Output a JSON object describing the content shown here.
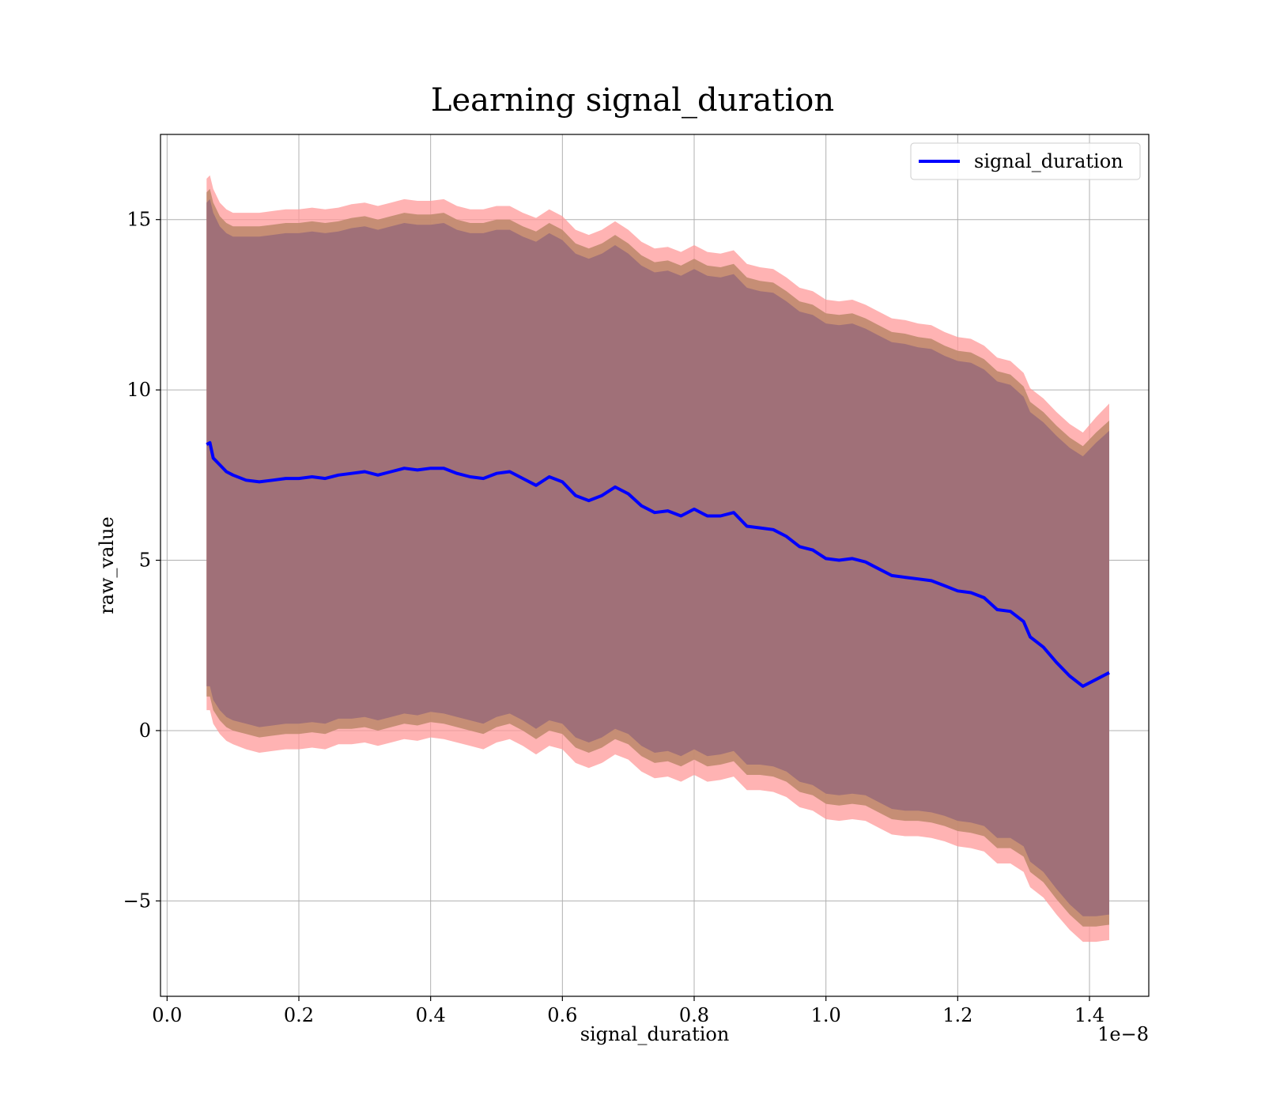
{
  "chart_data": {
    "type": "line",
    "title": "Learning signal_duration",
    "xlabel": "signal_duration",
    "ylabel": "raw_value",
    "x_offset_text": "1e−8",
    "xlim": [
      -0.01,
      1.49
    ],
    "ylim": [
      -7.8,
      17.5
    ],
    "xticks": [
      0.0,
      0.2,
      0.4,
      0.6,
      0.8,
      1.0,
      1.2,
      1.4
    ],
    "xtick_labels": [
      "0.0",
      "0.2",
      "0.4",
      "0.6",
      "0.8",
      "1.0",
      "1.2",
      "1.4"
    ],
    "yticks": [
      -5,
      0,
      5,
      10,
      15
    ],
    "ytick_labels": [
      "−5",
      "0",
      "5",
      "10",
      "15"
    ],
    "grid": true,
    "legend": {
      "position": "top-right",
      "entries": [
        "signal_duration"
      ]
    },
    "colors": {
      "line": "#0000ff",
      "band_outer": "#ff9999",
      "band_middle": "#c08a6e",
      "band_inner": "#a07078",
      "grid": "#b0b0b0"
    },
    "series": [
      {
        "name": "signal_duration",
        "x": [
          0.06,
          0.065,
          0.07,
          0.08,
          0.09,
          0.1,
          0.12,
          0.14,
          0.16,
          0.18,
          0.2,
          0.22,
          0.24,
          0.26,
          0.28,
          0.3,
          0.32,
          0.34,
          0.36,
          0.38,
          0.4,
          0.42,
          0.44,
          0.46,
          0.48,
          0.5,
          0.52,
          0.54,
          0.56,
          0.58,
          0.6,
          0.62,
          0.64,
          0.66,
          0.68,
          0.7,
          0.72,
          0.74,
          0.76,
          0.78,
          0.8,
          0.82,
          0.84,
          0.86,
          0.88,
          0.9,
          0.92,
          0.94,
          0.96,
          0.98,
          1.0,
          1.02,
          1.04,
          1.06,
          1.08,
          1.1,
          1.12,
          1.14,
          1.16,
          1.18,
          1.2,
          1.22,
          1.24,
          1.26,
          1.28,
          1.3,
          1.31,
          1.33,
          1.35,
          1.37,
          1.39,
          1.41,
          1.43
        ],
        "y": [
          8.4,
          8.45,
          8.0,
          7.8,
          7.6,
          7.5,
          7.35,
          7.3,
          7.35,
          7.4,
          7.4,
          7.45,
          7.4,
          7.5,
          7.55,
          7.6,
          7.5,
          7.6,
          7.7,
          7.65,
          7.7,
          7.7,
          7.55,
          7.45,
          7.4,
          7.55,
          7.6,
          7.4,
          7.2,
          7.45,
          7.3,
          6.9,
          6.75,
          6.9,
          7.15,
          6.95,
          6.6,
          6.4,
          6.45,
          6.3,
          6.5,
          6.3,
          6.3,
          6.4,
          6.0,
          5.95,
          5.9,
          5.7,
          5.4,
          5.3,
          5.05,
          5.0,
          5.05,
          4.95,
          4.75,
          4.55,
          4.5,
          4.45,
          4.4,
          4.25,
          4.1,
          4.05,
          3.9,
          3.55,
          3.5,
          3.2,
          2.75,
          2.45,
          2.0,
          1.6,
          1.3,
          1.5,
          1.7
        ],
        "band_outer_upper": [
          16.2,
          16.3,
          15.9,
          15.5,
          15.3,
          15.2,
          15.2,
          15.2,
          15.25,
          15.3,
          15.3,
          15.35,
          15.3,
          15.35,
          15.45,
          15.5,
          15.4,
          15.5,
          15.6,
          15.55,
          15.55,
          15.6,
          15.4,
          15.3,
          15.3,
          15.4,
          15.4,
          15.2,
          15.05,
          15.3,
          15.1,
          14.7,
          14.55,
          14.7,
          14.95,
          14.7,
          14.35,
          14.15,
          14.2,
          14.05,
          14.25,
          14.05,
          14.0,
          14.1,
          13.7,
          13.6,
          13.55,
          13.3,
          13.0,
          12.9,
          12.65,
          12.6,
          12.65,
          12.5,
          12.3,
          12.1,
          12.05,
          11.95,
          11.9,
          11.7,
          11.55,
          11.5,
          11.3,
          10.95,
          10.85,
          10.5,
          10.05,
          9.75,
          9.35,
          9.0,
          8.75,
          9.2,
          9.6
        ],
        "band_middle_upper": [
          15.8,
          15.9,
          15.5,
          15.1,
          14.9,
          14.8,
          14.8,
          14.8,
          14.85,
          14.9,
          14.9,
          14.95,
          14.9,
          14.95,
          15.05,
          15.1,
          15.0,
          15.1,
          15.2,
          15.15,
          15.15,
          15.2,
          15.0,
          14.9,
          14.9,
          15.0,
          15.0,
          14.8,
          14.65,
          14.9,
          14.7,
          14.3,
          14.15,
          14.3,
          14.55,
          14.3,
          13.95,
          13.75,
          13.8,
          13.65,
          13.85,
          13.65,
          13.6,
          13.7,
          13.3,
          13.2,
          13.15,
          12.9,
          12.6,
          12.5,
          12.25,
          12.2,
          12.25,
          12.1,
          11.9,
          11.7,
          11.65,
          11.55,
          11.5,
          11.3,
          11.15,
          11.1,
          10.9,
          10.55,
          10.45,
          10.1,
          9.65,
          9.35,
          8.95,
          8.6,
          8.35,
          8.75,
          9.1
        ],
        "band_inner_upper": [
          15.5,
          15.6,
          15.2,
          14.8,
          14.6,
          14.5,
          14.5,
          14.5,
          14.55,
          14.6,
          14.6,
          14.65,
          14.6,
          14.65,
          14.75,
          14.8,
          14.7,
          14.8,
          14.9,
          14.85,
          14.85,
          14.9,
          14.7,
          14.6,
          14.6,
          14.7,
          14.7,
          14.5,
          14.35,
          14.6,
          14.4,
          14.0,
          13.85,
          14.0,
          14.25,
          14.0,
          13.65,
          13.45,
          13.5,
          13.35,
          13.55,
          13.35,
          13.3,
          13.4,
          13.0,
          12.9,
          12.85,
          12.6,
          12.3,
          12.2,
          11.95,
          11.9,
          11.95,
          11.8,
          11.6,
          11.4,
          11.35,
          11.25,
          11.2,
          11.0,
          10.85,
          10.8,
          10.6,
          10.25,
          10.15,
          9.8,
          9.35,
          9.05,
          8.65,
          8.3,
          8.05,
          8.45,
          8.8
        ],
        "band_inner_lower": [
          1.3,
          1.3,
          0.9,
          0.6,
          0.4,
          0.3,
          0.2,
          0.1,
          0.15,
          0.2,
          0.2,
          0.25,
          0.2,
          0.35,
          0.35,
          0.4,
          0.3,
          0.4,
          0.5,
          0.45,
          0.55,
          0.5,
          0.4,
          0.3,
          0.2,
          0.4,
          0.5,
          0.3,
          0.05,
          0.3,
          0.2,
          -0.2,
          -0.35,
          -0.2,
          0.05,
          -0.1,
          -0.45,
          -0.65,
          -0.6,
          -0.75,
          -0.55,
          -0.75,
          -0.7,
          -0.6,
          -1.0,
          -1.0,
          -1.05,
          -1.2,
          -1.5,
          -1.6,
          -1.85,
          -1.9,
          -1.85,
          -1.9,
          -2.1,
          -2.3,
          -2.35,
          -2.35,
          -2.4,
          -2.5,
          -2.65,
          -2.7,
          -2.8,
          -3.15,
          -3.15,
          -3.4,
          -3.85,
          -4.15,
          -4.65,
          -5.1,
          -5.45,
          -5.45,
          -5.4
        ],
        "band_middle_lower": [
          1.0,
          1.0,
          0.6,
          0.3,
          0.1,
          0.0,
          -0.1,
          -0.2,
          -0.15,
          -0.1,
          -0.1,
          -0.05,
          -0.1,
          0.05,
          0.05,
          0.1,
          0.0,
          0.1,
          0.2,
          0.15,
          0.25,
          0.2,
          0.1,
          0.0,
          -0.1,
          0.1,
          0.2,
          0.0,
          -0.25,
          0.0,
          -0.1,
          -0.5,
          -0.65,
          -0.5,
          -0.25,
          -0.4,
          -0.75,
          -0.95,
          -0.9,
          -1.05,
          -0.85,
          -1.05,
          -1.0,
          -0.9,
          -1.3,
          -1.3,
          -1.35,
          -1.5,
          -1.8,
          -1.9,
          -2.15,
          -2.2,
          -2.15,
          -2.2,
          -2.4,
          -2.6,
          -2.65,
          -2.65,
          -2.7,
          -2.8,
          -2.95,
          -3.0,
          -3.1,
          -3.45,
          -3.45,
          -3.7,
          -4.15,
          -4.45,
          -4.95,
          -5.4,
          -5.75,
          -5.75,
          -5.7
        ],
        "band_outer_lower": [
          0.6,
          0.6,
          0.2,
          -0.1,
          -0.3,
          -0.4,
          -0.55,
          -0.65,
          -0.6,
          -0.55,
          -0.55,
          -0.5,
          -0.55,
          -0.4,
          -0.4,
          -0.35,
          -0.45,
          -0.35,
          -0.25,
          -0.3,
          -0.2,
          -0.25,
          -0.35,
          -0.45,
          -0.55,
          -0.35,
          -0.25,
          -0.45,
          -0.7,
          -0.45,
          -0.55,
          -0.95,
          -1.1,
          -0.95,
          -0.7,
          -0.85,
          -1.2,
          -1.4,
          -1.35,
          -1.5,
          -1.3,
          -1.5,
          -1.45,
          -1.35,
          -1.75,
          -1.75,
          -1.8,
          -1.95,
          -2.25,
          -2.35,
          -2.6,
          -2.65,
          -2.6,
          -2.65,
          -2.85,
          -3.05,
          -3.1,
          -3.1,
          -3.15,
          -3.25,
          -3.4,
          -3.45,
          -3.55,
          -3.9,
          -3.9,
          -4.15,
          -4.6,
          -4.9,
          -5.4,
          -5.85,
          -6.2,
          -6.2,
          -6.15
        ]
      }
    ]
  }
}
